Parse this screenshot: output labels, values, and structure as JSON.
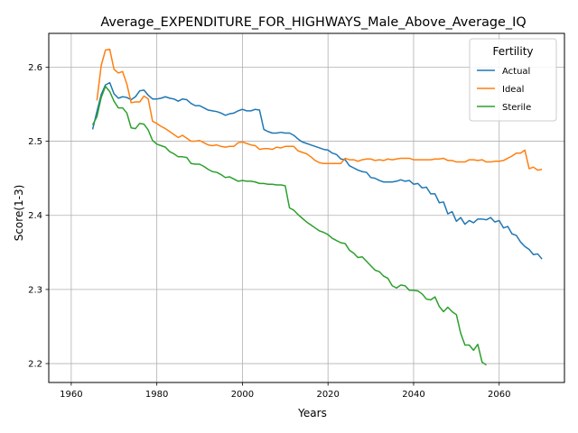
{
  "chart_data": {
    "type": "line",
    "title": "Average_EXPENDITURE_FOR_HIGHWAYS_Male_Above_Average_IQ",
    "xlabel": "Years",
    "ylabel": "Score(1-3)",
    "xlim": [
      1954.75,
      2075.25
    ],
    "ylim": [
      2.1745,
      2.6455
    ],
    "xticks": [
      1960,
      1980,
      2000,
      2020,
      2040,
      2060
    ],
    "yticks": [
      2.2,
      2.3,
      2.4,
      2.5,
      2.6
    ],
    "grid": true,
    "legend": {
      "title": "Fertility",
      "placement": "top-right"
    },
    "series": [
      {
        "name": "Actual",
        "color": "#1f77b4",
        "points": [
          [
            1965,
            2.516
          ],
          [
            1966,
            2.54
          ],
          [
            1967,
            2.563
          ],
          [
            1968,
            2.576
          ],
          [
            1969,
            2.579
          ],
          [
            1970,
            2.564
          ],
          [
            1971,
            2.558
          ],
          [
            1972,
            2.56
          ],
          [
            1973,
            2.559
          ],
          [
            1974,
            2.556
          ],
          [
            1975,
            2.56
          ],
          [
            1976,
            2.568
          ],
          [
            1977,
            2.569
          ],
          [
            1978,
            2.562
          ],
          [
            1979,
            2.557
          ],
          [
            1980,
            2.557
          ],
          [
            1981,
            2.558
          ],
          [
            1982,
            2.56
          ],
          [
            1983,
            2.558
          ],
          [
            1984,
            2.557
          ],
          [
            1985,
            2.554
          ],
          [
            1986,
            2.557
          ],
          [
            1987,
            2.556
          ],
          [
            1988,
            2.551
          ],
          [
            1989,
            2.548
          ],
          [
            1990,
            2.548
          ],
          [
            1991,
            2.545
          ],
          [
            1992,
            2.542
          ],
          [
            1993,
            2.541
          ],
          [
            1994,
            2.54
          ],
          [
            1995,
            2.538
          ],
          [
            1996,
            2.535
          ],
          [
            1997,
            2.537
          ],
          [
            1998,
            2.538
          ],
          [
            1999,
            2.541
          ],
          [
            2000,
            2.543
          ],
          [
            2001,
            2.541
          ],
          [
            2002,
            2.541
          ],
          [
            2003,
            2.543
          ],
          [
            2004,
            2.542
          ],
          [
            2005,
            2.516
          ],
          [
            2006,
            2.513
          ],
          [
            2007,
            2.511
          ],
          [
            2008,
            2.511
          ],
          [
            2009,
            2.512
          ],
          [
            2010,
            2.511
          ],
          [
            2011,
            2.511
          ],
          [
            2012,
            2.508
          ],
          [
            2013,
            2.503
          ],
          [
            2014,
            2.499
          ],
          [
            2015,
            2.497
          ],
          [
            2016,
            2.495
          ],
          [
            2017,
            2.493
          ],
          [
            2018,
            2.491
          ],
          [
            2019,
            2.489
          ],
          [
            2020,
            2.488
          ],
          [
            2021,
            2.484
          ],
          [
            2022,
            2.482
          ],
          [
            2023,
            2.476
          ],
          [
            2024,
            2.475
          ],
          [
            2025,
            2.467
          ],
          [
            2026,
            2.464
          ],
          [
            2027,
            2.461
          ],
          [
            2028,
            2.459
          ],
          [
            2029,
            2.458
          ],
          [
            2030,
            2.451
          ],
          [
            2031,
            2.45
          ],
          [
            2032,
            2.447
          ],
          [
            2033,
            2.445
          ],
          [
            2034,
            2.445
          ],
          [
            2035,
            2.445
          ],
          [
            2036,
            2.446
          ],
          [
            2037,
            2.448
          ],
          [
            2038,
            2.446
          ],
          [
            2039,
            2.447
          ],
          [
            2040,
            2.442
          ],
          [
            2041,
            2.443
          ],
          [
            2042,
            2.437
          ],
          [
            2043,
            2.438
          ],
          [
            2044,
            2.429
          ],
          [
            2045,
            2.429
          ],
          [
            2046,
            2.417
          ],
          [
            2047,
            2.418
          ],
          [
            2048,
            2.402
          ],
          [
            2049,
            2.405
          ],
          [
            2050,
            2.392
          ],
          [
            2051,
            2.397
          ],
          [
            2052,
            2.388
          ],
          [
            2053,
            2.393
          ],
          [
            2054,
            2.39
          ],
          [
            2055,
            2.395
          ],
          [
            2056,
            2.395
          ],
          [
            2057,
            2.394
          ],
          [
            2058,
            2.397
          ],
          [
            2059,
            2.391
          ],
          [
            2060,
            2.393
          ],
          [
            2061,
            2.383
          ],
          [
            2062,
            2.385
          ],
          [
            2063,
            2.375
          ],
          [
            2064,
            2.373
          ],
          [
            2065,
            2.364
          ],
          [
            2066,
            2.358
          ],
          [
            2067,
            2.354
          ],
          [
            2068,
            2.347
          ],
          [
            2069,
            2.348
          ],
          [
            2070,
            2.341
          ]
        ]
      },
      {
        "name": "Ideal",
        "color": "#ff7f0e",
        "points": [
          [
            1966,
            2.555
          ],
          [
            1967,
            2.602
          ],
          [
            1968,
            2.623
          ],
          [
            1969,
            2.624
          ],
          [
            1970,
            2.597
          ],
          [
            1971,
            2.592
          ],
          [
            1972,
            2.594
          ],
          [
            1973,
            2.577
          ],
          [
            1974,
            2.552
          ],
          [
            1975,
            2.553
          ],
          [
            1976,
            2.553
          ],
          [
            1977,
            2.561
          ],
          [
            1978,
            2.557
          ],
          [
            1979,
            2.527
          ],
          [
            1980,
            2.524
          ],
          [
            1981,
            2.52
          ],
          [
            1982,
            2.517
          ],
          [
            1983,
            2.513
          ],
          [
            1984,
            2.509
          ],
          [
            1985,
            2.505
          ],
          [
            1986,
            2.508
          ],
          [
            1987,
            2.504
          ],
          [
            1988,
            2.5
          ],
          [
            1989,
            2.5
          ],
          [
            1990,
            2.501
          ],
          [
            1991,
            2.498
          ],
          [
            1992,
            2.495
          ],
          [
            1993,
            2.494
          ],
          [
            1994,
            2.495
          ],
          [
            1995,
            2.493
          ],
          [
            1996,
            2.492
          ],
          [
            1997,
            2.493
          ],
          [
            1998,
            2.493
          ],
          [
            1999,
            2.498
          ],
          [
            2000,
            2.499
          ],
          [
            2001,
            2.497
          ],
          [
            2002,
            2.495
          ],
          [
            2003,
            2.494
          ],
          [
            2004,
            2.489
          ],
          [
            2005,
            2.49
          ],
          [
            2006,
            2.49
          ],
          [
            2007,
            2.489
          ],
          [
            2008,
            2.492
          ],
          [
            2009,
            2.491
          ],
          [
            2010,
            2.493
          ],
          [
            2011,
            2.493
          ],
          [
            2012,
            2.493
          ],
          [
            2013,
            2.487
          ],
          [
            2014,
            2.485
          ],
          [
            2015,
            2.483
          ],
          [
            2016,
            2.479
          ],
          [
            2017,
            2.474
          ],
          [
            2018,
            2.471
          ],
          [
            2019,
            2.47
          ],
          [
            2020,
            2.47
          ],
          [
            2021,
            2.47
          ],
          [
            2022,
            2.47
          ],
          [
            2023,
            2.47
          ],
          [
            2024,
            2.477
          ],
          [
            2025,
            2.475
          ],
          [
            2026,
            2.475
          ],
          [
            2027,
            2.473
          ],
          [
            2028,
            2.475
          ],
          [
            2029,
            2.476
          ],
          [
            2030,
            2.476
          ],
          [
            2031,
            2.474
          ],
          [
            2032,
            2.475
          ],
          [
            2033,
            2.474
          ],
          [
            2034,
            2.476
          ],
          [
            2035,
            2.475
          ],
          [
            2036,
            2.476
          ],
          [
            2037,
            2.477
          ],
          [
            2038,
            2.477
          ],
          [
            2039,
            2.477
          ],
          [
            2040,
            2.475
          ],
          [
            2041,
            2.475
          ],
          [
            2042,
            2.475
          ],
          [
            2043,
            2.475
          ],
          [
            2044,
            2.475
          ],
          [
            2045,
            2.476
          ],
          [
            2046,
            2.476
          ],
          [
            2047,
            2.477
          ],
          [
            2048,
            2.474
          ],
          [
            2049,
            2.474
          ],
          [
            2050,
            2.472
          ],
          [
            2051,
            2.472
          ],
          [
            2052,
            2.472
          ],
          [
            2053,
            2.475
          ],
          [
            2054,
            2.475
          ],
          [
            2055,
            2.474
          ],
          [
            2056,
            2.475
          ],
          [
            2057,
            2.472
          ],
          [
            2058,
            2.472
          ],
          [
            2059,
            2.473
          ],
          [
            2060,
            2.473
          ],
          [
            2061,
            2.474
          ],
          [
            2062,
            2.477
          ],
          [
            2063,
            2.48
          ],
          [
            2064,
            2.484
          ],
          [
            2065,
            2.484
          ],
          [
            2066,
            2.488
          ],
          [
            2067,
            2.463
          ],
          [
            2068,
            2.465
          ],
          [
            2069,
            2.461
          ],
          [
            2070,
            2.462
          ]
        ]
      },
      {
        "name": "Sterile",
        "color": "#2ca02c",
        "points": [
          [
            1965,
            2.522
          ],
          [
            1966,
            2.533
          ],
          [
            1967,
            2.559
          ],
          [
            1968,
            2.574
          ],
          [
            1969,
            2.567
          ],
          [
            1970,
            2.554
          ],
          [
            1971,
            2.545
          ],
          [
            1972,
            2.545
          ],
          [
            1973,
            2.538
          ],
          [
            1974,
            2.518
          ],
          [
            1975,
            2.517
          ],
          [
            1976,
            2.524
          ],
          [
            1977,
            2.523
          ],
          [
            1978,
            2.515
          ],
          [
            1979,
            2.501
          ],
          [
            1980,
            2.496
          ],
          [
            1981,
            2.494
          ],
          [
            1982,
            2.492
          ],
          [
            1983,
            2.486
          ],
          [
            1984,
            2.483
          ],
          [
            1985,
            2.479
          ],
          [
            1986,
            2.479
          ],
          [
            1987,
            2.478
          ],
          [
            1988,
            2.47
          ],
          [
            1989,
            2.469
          ],
          [
            1990,
            2.469
          ],
          [
            1991,
            2.466
          ],
          [
            1992,
            2.462
          ],
          [
            1993,
            2.459
          ],
          [
            1994,
            2.458
          ],
          [
            1995,
            2.455
          ],
          [
            1996,
            2.451
          ],
          [
            1997,
            2.452
          ],
          [
            1998,
            2.449
          ],
          [
            1999,
            2.446
          ],
          [
            2000,
            2.447
          ],
          [
            2001,
            2.446
          ],
          [
            2002,
            2.446
          ],
          [
            2003,
            2.445
          ],
          [
            2004,
            2.443
          ],
          [
            2005,
            2.443
          ],
          [
            2006,
            2.442
          ],
          [
            2007,
            2.442
          ],
          [
            2008,
            2.441
          ],
          [
            2009,
            2.441
          ],
          [
            2010,
            2.44
          ],
          [
            2011,
            2.41
          ],
          [
            2012,
            2.407
          ],
          [
            2013,
            2.401
          ],
          [
            2014,
            2.396
          ],
          [
            2015,
            2.391
          ],
          [
            2016,
            2.387
          ],
          [
            2017,
            2.383
          ],
          [
            2018,
            2.379
          ],
          [
            2019,
            2.377
          ],
          [
            2020,
            2.374
          ],
          [
            2021,
            2.369
          ],
          [
            2022,
            2.366
          ],
          [
            2023,
            2.363
          ],
          [
            2024,
            2.362
          ],
          [
            2025,
            2.353
          ],
          [
            2026,
            2.349
          ],
          [
            2027,
            2.343
          ],
          [
            2028,
            2.344
          ],
          [
            2029,
            2.338
          ],
          [
            2030,
            2.332
          ],
          [
            2031,
            2.326
          ],
          [
            2032,
            2.324
          ],
          [
            2033,
            2.318
          ],
          [
            2034,
            2.315
          ],
          [
            2035,
            2.305
          ],
          [
            2036,
            2.302
          ],
          [
            2037,
            2.306
          ],
          [
            2038,
            2.305
          ],
          [
            2039,
            2.299
          ],
          [
            2040,
            2.299
          ],
          [
            2041,
            2.298
          ],
          [
            2042,
            2.294
          ],
          [
            2043,
            2.287
          ],
          [
            2044,
            2.286
          ],
          [
            2045,
            2.29
          ],
          [
            2046,
            2.277
          ],
          [
            2047,
            2.27
          ],
          [
            2048,
            2.276
          ],
          [
            2049,
            2.27
          ],
          [
            2050,
            2.266
          ],
          [
            2051,
            2.241
          ],
          [
            2052,
            2.225
          ],
          [
            2053,
            2.225
          ],
          [
            2054,
            2.218
          ],
          [
            2055,
            2.226
          ],
          [
            2056,
            2.202
          ],
          [
            2057,
            2.198
          ]
        ]
      }
    ]
  }
}
